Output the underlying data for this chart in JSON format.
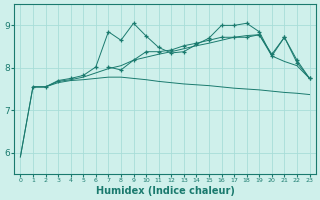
{
  "bg_color": "#cff0eb",
  "grid_color": "#a8ddd8",
  "line_color": "#1a7a6e",
  "x_label": "Humidex (Indice chaleur)",
  "ylim": [
    5.5,
    9.5
  ],
  "xlim": [
    -0.5,
    23.5
  ],
  "yticks": [
    6,
    7,
    8,
    9
  ],
  "xticks": [
    0,
    1,
    2,
    3,
    4,
    5,
    6,
    7,
    8,
    9,
    10,
    11,
    12,
    13,
    14,
    15,
    16,
    17,
    18,
    19,
    20,
    21,
    22,
    23
  ],
  "series": [
    {
      "x": [
        0,
        1,
        2,
        3,
        4,
        5,
        6,
        7,
        8,
        9,
        10,
        11,
        12,
        13,
        14,
        15,
        16,
        17,
        18,
        19,
        20,
        21,
        22,
        23
      ],
      "y": [
        5.9,
        7.55,
        7.55,
        7.65,
        7.7,
        7.72,
        7.75,
        7.78,
        7.78,
        7.75,
        7.72,
        7.68,
        7.65,
        7.62,
        7.6,
        7.58,
        7.55,
        7.52,
        7.5,
        7.48,
        7.45,
        7.42,
        7.4,
        7.37
      ],
      "marker": false
    },
    {
      "x": [
        0,
        1,
        2,
        3,
        4,
        5,
        6,
        7,
        8,
        9,
        10,
        11,
        12,
        13,
        14,
        15,
        16,
        17,
        18,
        19,
        20,
        21,
        22,
        23
      ],
      "y": [
        5.9,
        7.55,
        7.55,
        7.68,
        7.72,
        7.78,
        7.88,
        7.98,
        8.05,
        8.18,
        8.25,
        8.32,
        8.38,
        8.45,
        8.52,
        8.58,
        8.65,
        8.72,
        8.76,
        8.78,
        8.28,
        8.15,
        8.05,
        7.75
      ],
      "marker": false
    },
    {
      "x": [
        1,
        2,
        3,
        4,
        5,
        6,
        7,
        8,
        9,
        10,
        11,
        12,
        13,
        14,
        15,
        16,
        17,
        18,
        19,
        20,
        21,
        22,
        23
      ],
      "y": [
        7.55,
        7.55,
        7.7,
        7.75,
        7.82,
        8.02,
        8.85,
        8.65,
        9.05,
        8.75,
        8.48,
        8.35,
        8.38,
        8.55,
        8.7,
        9.0,
        9.0,
        9.05,
        8.85,
        8.28,
        8.72,
        8.12,
        7.75
      ],
      "marker": true
    },
    {
      "x": [
        7,
        8,
        9,
        10,
        11,
        12,
        13,
        14,
        15,
        16,
        17,
        18,
        19,
        20,
        21,
        22,
        23
      ],
      "y": [
        8.02,
        7.95,
        8.18,
        8.38,
        8.38,
        8.42,
        8.52,
        8.58,
        8.65,
        8.72,
        8.72,
        8.72,
        8.78,
        8.32,
        8.72,
        8.18,
        7.75
      ],
      "marker": true
    }
  ]
}
